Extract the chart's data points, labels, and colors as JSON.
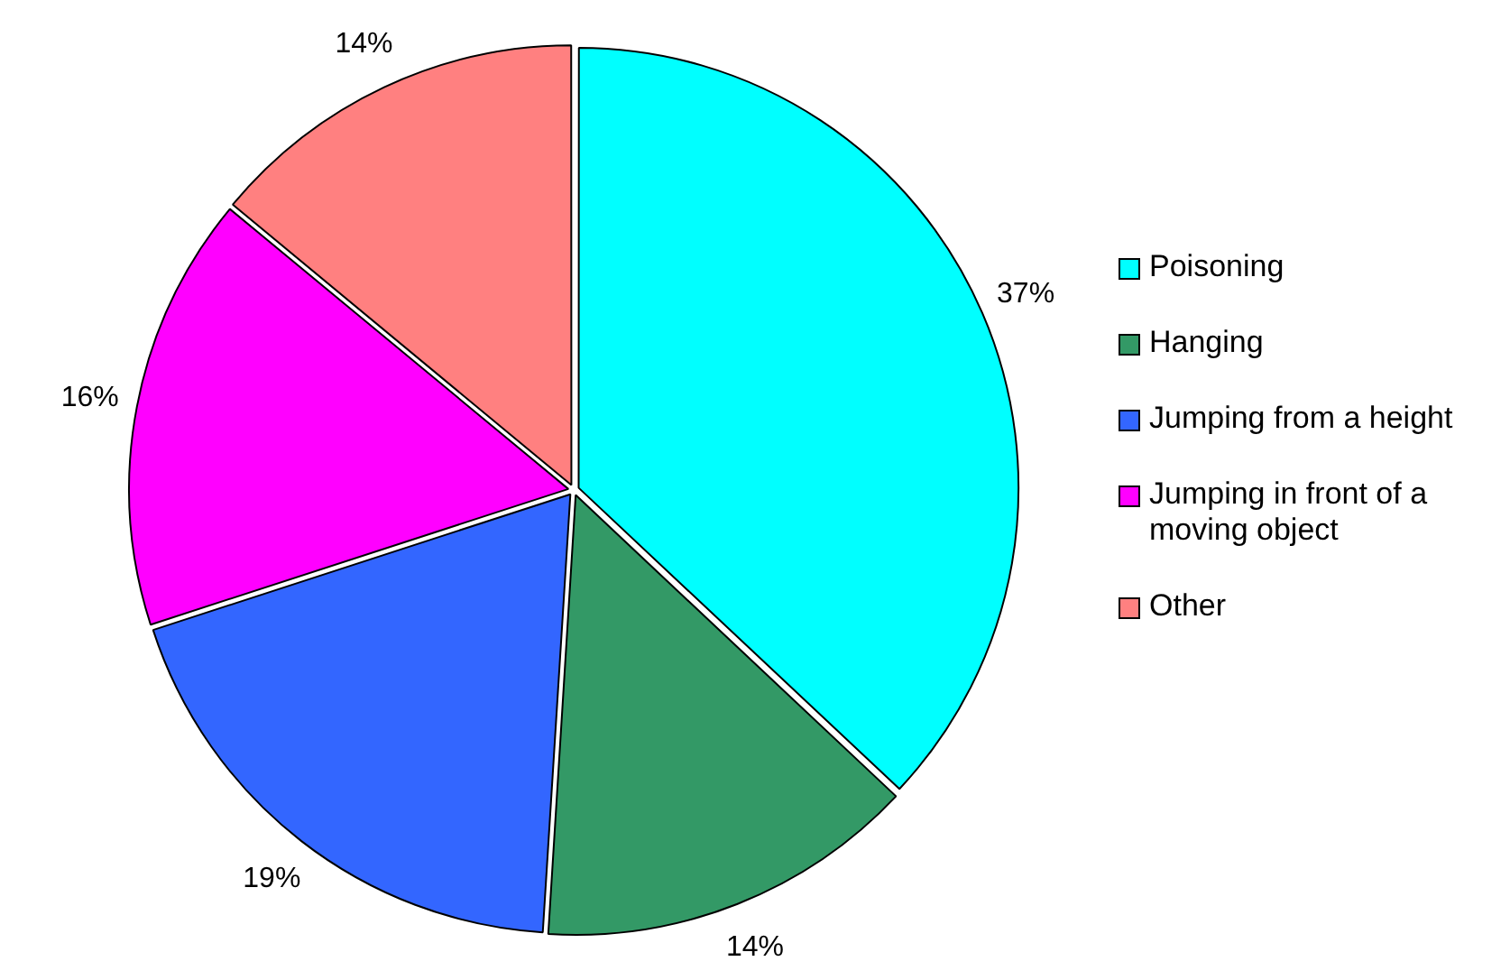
{
  "chart_data": {
    "type": "pie",
    "categories": [
      "Poisoning",
      "Hanging",
      "Jumping from a height",
      "Jumping in front of a moving object",
      "Other"
    ],
    "values": [
      37,
      14,
      19,
      16,
      14
    ],
    "colors": [
      "#00ffff",
      "#339966",
      "#3366ff",
      "#ff00ff",
      "#ff8080"
    ],
    "value_labels": [
      "37%",
      "14%",
      "19%",
      "16%",
      "14%"
    ],
    "legend": "right"
  }
}
